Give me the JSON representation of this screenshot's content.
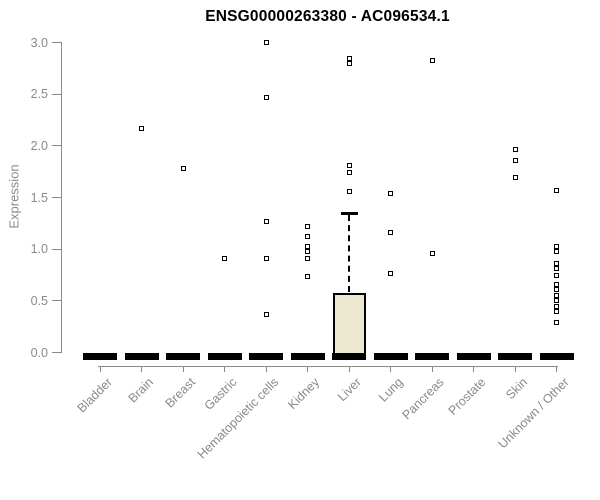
{
  "chart_data": {
    "type": "box",
    "title": "ENSG00000263380 - AC096534.1",
    "ylabel": "Expression",
    "ylim": [
      0.0,
      3.0
    ],
    "ytick_step": 0.5,
    "ytick_labels": [
      "0.0",
      "0.5",
      "1.0",
      "1.5",
      "2.0",
      "2.5",
      "3.0"
    ],
    "grid": false,
    "legend": null,
    "categories": [
      "Bladder",
      "Brain",
      "Breast",
      "Gastric",
      "Hematopoietic cells",
      "Kidney",
      "Liver",
      "Lung",
      "Pancreas",
      "Prostate",
      "Skin",
      "Unknown / Other"
    ],
    "boxes": [
      {
        "category": "Bladder",
        "q1": 0,
        "median": 0,
        "q3": 0,
        "whisker_low": 0,
        "whisker_high": 0,
        "outliers": []
      },
      {
        "category": "Brain",
        "q1": 0,
        "median": 0,
        "q3": 0,
        "whisker_low": 0,
        "whisker_high": 0,
        "outliers": [
          2.17
        ]
      },
      {
        "category": "Breast",
        "q1": 0,
        "median": 0,
        "q3": 0,
        "whisker_low": 0,
        "whisker_high": 0,
        "outliers": [
          1.78
        ]
      },
      {
        "category": "Gastric",
        "q1": 0,
        "median": 0,
        "q3": 0,
        "whisker_low": 0,
        "whisker_high": 0,
        "outliers": [
          0.91
        ]
      },
      {
        "category": "Hematopoietic cells",
        "q1": 0,
        "median": 0,
        "q3": 0,
        "whisker_low": 0,
        "whisker_high": 0,
        "outliers": [
          3.0,
          2.47,
          1.27,
          0.91,
          0.37
        ]
      },
      {
        "category": "Kidney",
        "q1": 0,
        "median": 0,
        "q3": 0,
        "whisker_low": 0,
        "whisker_high": 0,
        "outliers": [
          1.22,
          1.12,
          1.03,
          0.98,
          0.91,
          0.74
        ]
      },
      {
        "category": "Liver",
        "q1": 0,
        "median": 0,
        "q3": 0.58,
        "whisker_low": 0,
        "whisker_high": 1.35,
        "outliers": [
          2.85,
          2.8,
          1.81,
          1.74,
          1.56
        ]
      },
      {
        "category": "Lung",
        "q1": 0,
        "median": 0,
        "q3": 0,
        "whisker_low": 0,
        "whisker_high": 0,
        "outliers": [
          1.54,
          1.16,
          0.76
        ]
      },
      {
        "category": "Pancreas",
        "q1": 0,
        "median": 0,
        "q3": 0,
        "whisker_low": 0,
        "whisker_high": 0,
        "outliers": [
          2.83,
          0.96
        ]
      },
      {
        "category": "Prostate",
        "q1": 0,
        "median": 0,
        "q3": 0,
        "whisker_low": 0,
        "whisker_high": 0,
        "outliers": []
      },
      {
        "category": "Skin",
        "q1": 0,
        "median": 0,
        "q3": 0,
        "whisker_low": 0,
        "whisker_high": 0,
        "outliers": [
          1.96,
          1.86,
          1.69
        ]
      },
      {
        "category": "Unknown / Other",
        "q1": 0,
        "median": 0,
        "q3": 0,
        "whisker_low": 0,
        "whisker_high": 0,
        "outliers": [
          1.57,
          1.03,
          0.98,
          0.86,
          0.81,
          0.75,
          0.66,
          0.61,
          0.55,
          0.5,
          0.45,
          0.4,
          0.29
        ]
      }
    ],
    "colors": {
      "box_fill": "#EDE8D0",
      "box_border": "#000000",
      "marker": "#000000",
      "axis": "#8A8A8A",
      "tick_text": "#8A8A8A",
      "title_text": "#000000",
      "background": "#FFFFFF"
    }
  }
}
